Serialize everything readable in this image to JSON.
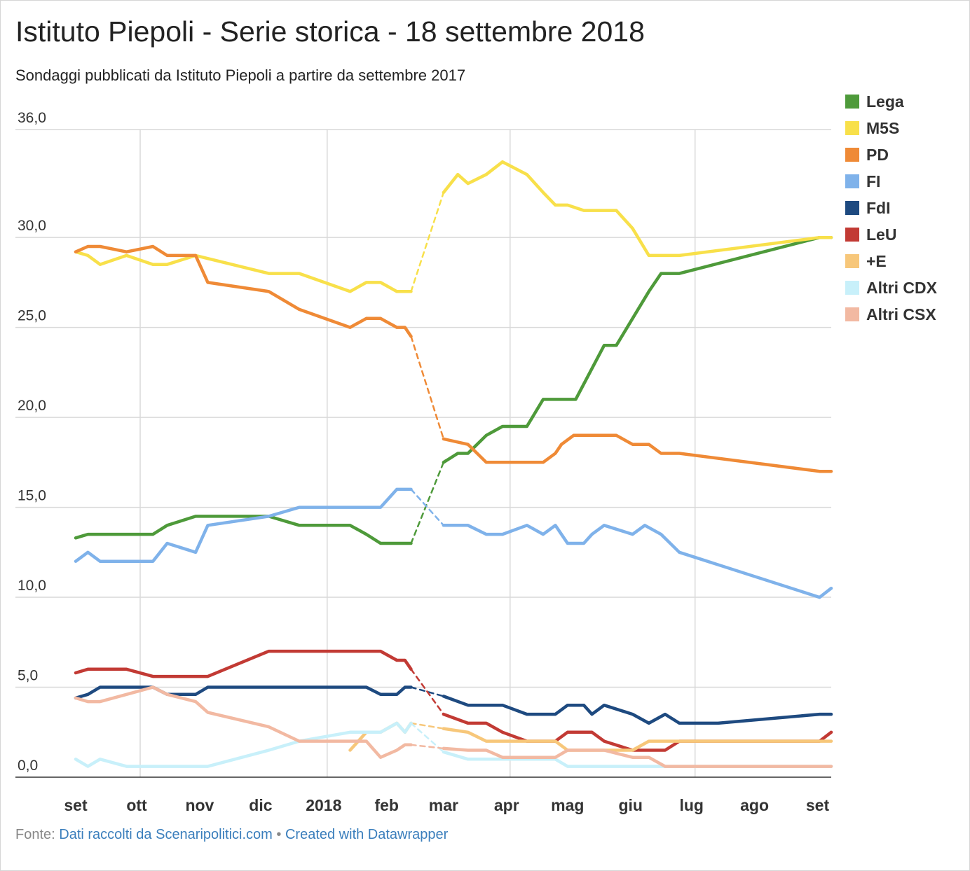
{
  "chart_data": {
    "type": "line",
    "title": "Istituto Piepoli - Serie storica - 18 settembre 2018",
    "subtitle": "Sondaggi pubblicati da Istituto Piepoli a partire da settembre 2017",
    "ylim": [
      0,
      36
    ],
    "y_ticks": [
      "36,0",
      "30,0",
      "25,0",
      "20,0",
      "15,0",
      "10,0",
      "5,0",
      "0,0"
    ],
    "y_tick_values": [
      36,
      30,
      25,
      20,
      15,
      10,
      5,
      0
    ],
    "x_ticks": [
      "set",
      "ott",
      "nov",
      "dic",
      "2018",
      "feb",
      "mar",
      "apr",
      "mag",
      "giu",
      "lug",
      "ago",
      "set"
    ],
    "x_tick_days": [
      0,
      30,
      61,
      91,
      122,
      153,
      181,
      212,
      242,
      273,
      303,
      334,
      365
    ],
    "x_axis_unit": "days from 1 Sep 2017",
    "grid": true,
    "legend_position": "right",
    "gap_days": [
      145,
      163
    ],
    "series": [
      {
        "name": "Lega",
        "color": "#4e9a3a",
        "points": [
          [
            0,
            13.3
          ],
          [
            6,
            13.5
          ],
          [
            38,
            13.5
          ],
          [
            45,
            14
          ],
          [
            59,
            14.5
          ],
          [
            95,
            14.5
          ],
          [
            110,
            14
          ],
          [
            135,
            14
          ],
          [
            143,
            13.5
          ],
          [
            150,
            13
          ],
          [
            165,
            13
          ],
          [
            181,
            17.5
          ],
          [
            188,
            18
          ],
          [
            193,
            18
          ],
          [
            202,
            19
          ],
          [
            210,
            19.5
          ],
          [
            222,
            19.5
          ],
          [
            230,
            21
          ],
          [
            246,
            21
          ],
          [
            260,
            24
          ],
          [
            266,
            24
          ],
          [
            274,
            25.5
          ],
          [
            282,
            27
          ],
          [
            288,
            28
          ],
          [
            297,
            28
          ],
          [
            366,
            30
          ],
          [
            373,
            30
          ]
        ]
      },
      {
        "name": "M5S",
        "color": "#f8e04a",
        "points": [
          [
            0,
            29.2
          ],
          [
            6,
            29
          ],
          [
            12,
            28.5
          ],
          [
            25,
            29
          ],
          [
            38,
            28.5
          ],
          [
            45,
            28.5
          ],
          [
            59,
            29
          ],
          [
            95,
            28
          ],
          [
            110,
            28
          ],
          [
            135,
            27
          ],
          [
            143,
            27.5
          ],
          [
            150,
            27.5
          ],
          [
            158,
            27
          ],
          [
            165,
            27
          ],
          [
            181,
            32.5
          ],
          [
            188,
            33.5
          ],
          [
            193,
            33
          ],
          [
            202,
            33.5
          ],
          [
            210,
            34.2
          ],
          [
            222,
            33.5
          ],
          [
            230,
            32.5
          ],
          [
            236,
            31.8
          ],
          [
            242,
            31.8
          ],
          [
            250,
            31.5
          ],
          [
            266,
            31.5
          ],
          [
            274,
            30.5
          ],
          [
            282,
            29
          ],
          [
            297,
            29
          ],
          [
            366,
            30
          ],
          [
            373,
            30
          ]
        ]
      },
      {
        "name": "PD",
        "color": "#ef8a36",
        "points": [
          [
            0,
            29.2
          ],
          [
            6,
            29.5
          ],
          [
            12,
            29.5
          ],
          [
            25,
            29.2
          ],
          [
            38,
            29.5
          ],
          [
            45,
            29
          ],
          [
            59,
            29
          ],
          [
            65,
            27.5
          ],
          [
            95,
            27
          ],
          [
            110,
            26
          ],
          [
            135,
            25
          ],
          [
            143,
            25.5
          ],
          [
            150,
            25.5
          ],
          [
            158,
            25
          ],
          [
            162,
            25
          ],
          [
            165,
            24.5
          ],
          [
            181,
            18.8
          ],
          [
            193,
            18.5
          ],
          [
            202,
            17.5
          ],
          [
            222,
            17.5
          ],
          [
            230,
            17.5
          ],
          [
            236,
            18
          ],
          [
            239,
            18.5
          ],
          [
            245,
            19
          ],
          [
            266,
            19
          ],
          [
            274,
            18.5
          ],
          [
            282,
            18.5
          ],
          [
            288,
            18
          ],
          [
            297,
            18
          ],
          [
            366,
            17
          ],
          [
            373,
            17
          ]
        ]
      },
      {
        "name": "FI",
        "color": "#7fb2ea",
        "points": [
          [
            0,
            12
          ],
          [
            6,
            12.5
          ],
          [
            12,
            12
          ],
          [
            38,
            12
          ],
          [
            45,
            13
          ],
          [
            59,
            12.5
          ],
          [
            65,
            14
          ],
          [
            95,
            14.5
          ],
          [
            110,
            15
          ],
          [
            135,
            15
          ],
          [
            143,
            15
          ],
          [
            150,
            15
          ],
          [
            158,
            16
          ],
          [
            165,
            16
          ],
          [
            181,
            14
          ],
          [
            193,
            14
          ],
          [
            202,
            13.5
          ],
          [
            210,
            13.5
          ],
          [
            222,
            14
          ],
          [
            230,
            13.5
          ],
          [
            236,
            14
          ],
          [
            242,
            13
          ],
          [
            250,
            13
          ],
          [
            254,
            13.5
          ],
          [
            260,
            14
          ],
          [
            274,
            13.5
          ],
          [
            280,
            14
          ],
          [
            288,
            13.5
          ],
          [
            297,
            12.5
          ],
          [
            366,
            10
          ],
          [
            373,
            10.5
          ]
        ]
      },
      {
        "name": "FdI",
        "color": "#1e4a80",
        "points": [
          [
            0,
            4.4
          ],
          [
            6,
            4.6
          ],
          [
            12,
            5
          ],
          [
            38,
            5
          ],
          [
            45,
            4.6
          ],
          [
            59,
            4.6
          ],
          [
            65,
            5
          ],
          [
            95,
            5
          ],
          [
            110,
            5
          ],
          [
            135,
            5
          ],
          [
            143,
            5
          ],
          [
            150,
            4.6
          ],
          [
            158,
            4.6
          ],
          [
            162,
            5
          ],
          [
            165,
            5
          ],
          [
            181,
            4.5
          ],
          [
            193,
            4
          ],
          [
            210,
            4
          ],
          [
            222,
            3.5
          ],
          [
            236,
            3.5
          ],
          [
            242,
            4
          ],
          [
            250,
            4
          ],
          [
            254,
            3.5
          ],
          [
            260,
            4
          ],
          [
            274,
            3.5
          ],
          [
            282,
            3
          ],
          [
            290,
            3.5
          ],
          [
            297,
            3
          ],
          [
            316,
            3
          ],
          [
            366,
            3.5
          ],
          [
            373,
            3.5
          ]
        ]
      },
      {
        "name": "LeU",
        "color": "#c23a34",
        "points": [
          [
            0,
            5.8
          ],
          [
            6,
            6
          ],
          [
            25,
            6
          ],
          [
            38,
            5.6
          ],
          [
            59,
            5.6
          ],
          [
            65,
            5.6
          ],
          [
            95,
            7
          ],
          [
            110,
            7
          ],
          [
            135,
            7
          ],
          [
            143,
            7
          ],
          [
            150,
            7
          ],
          [
            158,
            6.5
          ],
          [
            162,
            6.5
          ],
          [
            165,
            6
          ],
          [
            181,
            3.5
          ],
          [
            193,
            3
          ],
          [
            202,
            3
          ],
          [
            210,
            2.5
          ],
          [
            222,
            2
          ],
          [
            236,
            2
          ],
          [
            242,
            2.5
          ],
          [
            250,
            2.5
          ],
          [
            254,
            2.5
          ],
          [
            260,
            2
          ],
          [
            274,
            1.5
          ],
          [
            282,
            1.5
          ],
          [
            290,
            1.5
          ],
          [
            297,
            2
          ],
          [
            316,
            2
          ],
          [
            366,
            2
          ],
          [
            373,
            2.5
          ]
        ]
      },
      {
        "name": "+E",
        "color": "#f7c77a",
        "points": [
          [
            135,
            1.5
          ],
          [
            143,
            2.5
          ],
          [
            150,
            2.5
          ],
          [
            158,
            3
          ],
          [
            162,
            2.5
          ],
          [
            165,
            3
          ],
          [
            181,
            2.7
          ],
          [
            193,
            2.5
          ],
          [
            202,
            2
          ],
          [
            210,
            2
          ],
          [
            222,
            2
          ],
          [
            236,
            2
          ],
          [
            242,
            1.5
          ],
          [
            250,
            1.5
          ],
          [
            254,
            1.5
          ],
          [
            260,
            1.5
          ],
          [
            274,
            1.5
          ],
          [
            282,
            2
          ],
          [
            290,
            2
          ],
          [
            297,
            2
          ],
          [
            316,
            2
          ],
          [
            366,
            2
          ],
          [
            373,
            2
          ]
        ]
      },
      {
        "name": "Altri CDX",
        "color": "#c8f0fa",
        "points": [
          [
            0,
            1
          ],
          [
            6,
            0.6
          ],
          [
            12,
            1
          ],
          [
            25,
            0.6
          ],
          [
            38,
            0.6
          ],
          [
            65,
            0.6
          ],
          [
            95,
            1.5
          ],
          [
            110,
            2
          ],
          [
            135,
            2.5
          ],
          [
            143,
            2.5
          ],
          [
            150,
            2.5
          ],
          [
            158,
            3
          ],
          [
            162,
            2.5
          ],
          [
            165,
            3
          ],
          [
            181,
            1.4
          ],
          [
            193,
            1
          ],
          [
            210,
            1
          ],
          [
            222,
            1
          ],
          [
            236,
            1
          ],
          [
            242,
            0.6
          ],
          [
            250,
            0.6
          ],
          [
            297,
            0.6
          ],
          [
            366,
            0.6
          ],
          [
            373,
            0.6
          ]
        ]
      },
      {
        "name": "Altri CSX",
        "color": "#f2b9a2",
        "points": [
          [
            0,
            4.4
          ],
          [
            6,
            4.2
          ],
          [
            12,
            4.2
          ],
          [
            25,
            4.6
          ],
          [
            38,
            5
          ],
          [
            45,
            4.6
          ],
          [
            59,
            4.2
          ],
          [
            65,
            3.6
          ],
          [
            95,
            2.8
          ],
          [
            110,
            2
          ],
          [
            135,
            2
          ],
          [
            143,
            2
          ],
          [
            150,
            1.1
          ],
          [
            158,
            1.5
          ],
          [
            162,
            1.8
          ],
          [
            165,
            1.8
          ],
          [
            181,
            1.6
          ],
          [
            193,
            1.5
          ],
          [
            202,
            1.5
          ],
          [
            210,
            1.1
          ],
          [
            222,
            1.1
          ],
          [
            236,
            1.1
          ],
          [
            242,
            1.5
          ],
          [
            250,
            1.5
          ],
          [
            254,
            1.5
          ],
          [
            260,
            1.5
          ],
          [
            274,
            1.1
          ],
          [
            282,
            1.1
          ],
          [
            290,
            0.6
          ],
          [
            297,
            0.6
          ],
          [
            366,
            0.6
          ],
          [
            373,
            0.6
          ]
        ]
      }
    ]
  },
  "footer": {
    "prefix": "Fonte:",
    "source": "Dati raccolti da Scenaripolitici.com",
    "separator": "•",
    "credit": "Created with Datawrapper"
  }
}
